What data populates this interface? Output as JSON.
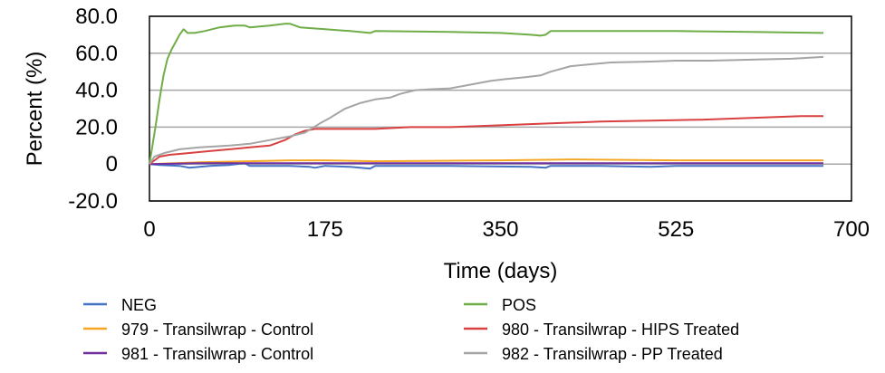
{
  "chart_data": {
    "type": "line",
    "xlabel": "Time (days)",
    "ylabel": "Percent (%)",
    "xlim": [
      0,
      700
    ],
    "ylim": [
      -20,
      80
    ],
    "x_ticks": [
      0,
      175,
      350,
      525,
      700
    ],
    "x_tick_labels": [
      "0",
      "175",
      "350",
      "525",
      "700"
    ],
    "y_ticks": [
      80,
      60,
      40,
      20,
      0,
      -20
    ],
    "y_tick_labels": [
      "80.0",
      "60.0",
      "40.0",
      "20.0",
      "0",
      "-20.0"
    ],
    "grid": "horizontal",
    "legend_position": "bottom",
    "series": [
      {
        "name": "NEG",
        "color": "#4472C4",
        "points": [
          [
            0,
            0
          ],
          [
            10,
            -0.5
          ],
          [
            30,
            -1
          ],
          [
            40,
            -2
          ],
          [
            60,
            -1
          ],
          [
            80,
            -0.5
          ],
          [
            95,
            0.5
          ],
          [
            100,
            -1
          ],
          [
            140,
            -1
          ],
          [
            160,
            -1.5
          ],
          [
            165,
            -2
          ],
          [
            175,
            -1
          ],
          [
            200,
            -1.5
          ],
          [
            220,
            -2.5
          ],
          [
            225,
            -1
          ],
          [
            300,
            -1
          ],
          [
            380,
            -1.5
          ],
          [
            395,
            -2
          ],
          [
            400,
            -1
          ],
          [
            450,
            -1
          ],
          [
            500,
            -1.5
          ],
          [
            525,
            -1
          ],
          [
            600,
            -1
          ],
          [
            672,
            -1
          ]
        ]
      },
      {
        "name": "979 - Transilwrap - Control",
        "color": "#F5A623",
        "points": [
          [
            0,
            0
          ],
          [
            50,
            1
          ],
          [
            100,
            1.5
          ],
          [
            140,
            2
          ],
          [
            175,
            2
          ],
          [
            225,
            1.5
          ],
          [
            300,
            1.8
          ],
          [
            350,
            2
          ],
          [
            420,
            2.5
          ],
          [
            525,
            2
          ],
          [
            600,
            2
          ],
          [
            672,
            2
          ]
        ]
      },
      {
        "name": "981 - Transilwrap - Control",
        "color": "#7030A0",
        "points": [
          [
            0,
            0
          ],
          [
            50,
            0.5
          ],
          [
            100,
            0.5
          ],
          [
            175,
            0.5
          ],
          [
            250,
            0.5
          ],
          [
            350,
            0.5
          ],
          [
            450,
            0.5
          ],
          [
            525,
            0.5
          ],
          [
            600,
            0.5
          ],
          [
            672,
            0.5
          ]
        ]
      },
      {
        "name": "POS",
        "color": "#70AD47",
        "points": [
          [
            0,
            0
          ],
          [
            3,
            10
          ],
          [
            6,
            20
          ],
          [
            10,
            35
          ],
          [
            14,
            48
          ],
          [
            18,
            57
          ],
          [
            22,
            62
          ],
          [
            26,
            66
          ],
          [
            30,
            70
          ],
          [
            34,
            73
          ],
          [
            38,
            71
          ],
          [
            45,
            71
          ],
          [
            55,
            72
          ],
          [
            70,
            74
          ],
          [
            85,
            75
          ],
          [
            95,
            75
          ],
          [
            100,
            74
          ],
          [
            120,
            75
          ],
          [
            135,
            76
          ],
          [
            140,
            76
          ],
          [
            150,
            74
          ],
          [
            175,
            73
          ],
          [
            200,
            72
          ],
          [
            220,
            71
          ],
          [
            225,
            72
          ],
          [
            300,
            71.5
          ],
          [
            350,
            71
          ],
          [
            380,
            70
          ],
          [
            390,
            69.5
          ],
          [
            395,
            70
          ],
          [
            400,
            72
          ],
          [
            450,
            72
          ],
          [
            525,
            72
          ],
          [
            600,
            71.5
          ],
          [
            672,
            71
          ]
        ]
      },
      {
        "name": "980 - Transilwrap - HIPS Treated",
        "color": "#D94040",
        "points": [
          [
            0,
            0
          ],
          [
            10,
            4
          ],
          [
            20,
            5
          ],
          [
            40,
            6
          ],
          [
            60,
            7
          ],
          [
            80,
            8
          ],
          [
            100,
            9
          ],
          [
            120,
            10
          ],
          [
            135,
            13
          ],
          [
            145,
            16
          ],
          [
            155,
            18
          ],
          [
            165,
            19
          ],
          [
            175,
            19
          ],
          [
            225,
            19
          ],
          [
            260,
            20
          ],
          [
            300,
            20
          ],
          [
            350,
            21
          ],
          [
            400,
            22
          ],
          [
            450,
            23
          ],
          [
            500,
            23.5
          ],
          [
            550,
            24
          ],
          [
            600,
            25
          ],
          [
            650,
            26
          ],
          [
            672,
            26
          ]
        ]
      },
      {
        "name": "982 - Transilwrap - PP Treated",
        "color": "#A5A5A5",
        "points": [
          [
            0,
            0
          ],
          [
            5,
            4
          ],
          [
            15,
            6
          ],
          [
            30,
            8
          ],
          [
            50,
            9
          ],
          [
            80,
            10
          ],
          [
            100,
            11
          ],
          [
            120,
            13
          ],
          [
            140,
            15
          ],
          [
            155,
            17
          ],
          [
            170,
            22
          ],
          [
            180,
            25
          ],
          [
            195,
            30
          ],
          [
            210,
            33
          ],
          [
            225,
            35
          ],
          [
            240,
            36
          ],
          [
            250,
            38
          ],
          [
            265,
            40
          ],
          [
            280,
            40.5
          ],
          [
            300,
            41
          ],
          [
            320,
            43
          ],
          [
            340,
            45
          ],
          [
            355,
            46
          ],
          [
            375,
            47
          ],
          [
            390,
            48
          ],
          [
            400,
            50
          ],
          [
            420,
            53
          ],
          [
            440,
            54
          ],
          [
            460,
            55
          ],
          [
            500,
            55.5
          ],
          [
            525,
            56
          ],
          [
            560,
            56
          ],
          [
            600,
            56.5
          ],
          [
            640,
            57
          ],
          [
            672,
            58
          ]
        ]
      }
    ]
  }
}
